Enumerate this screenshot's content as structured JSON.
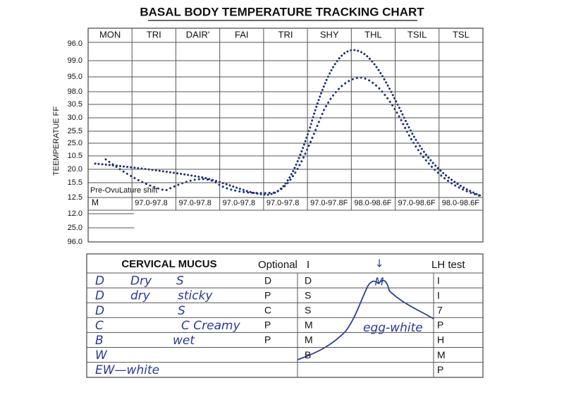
{
  "title": "BASAL BODY TEMPERATURE TRACKING CHART",
  "chart": {
    "days": [
      "MON",
      "TRI",
      "DAIR'",
      "FAI",
      "TRI",
      "SHY",
      "THL",
      "TSIL",
      "TSL"
    ],
    "y_axis_title": "TEEMPERATUE FF",
    "y_labels": [
      "96.0",
      "99.0",
      "95.0",
      "98.0",
      "30.5",
      "30.0",
      "25.5",
      "25.0",
      "10.5",
      "20.0",
      "15.5",
      "12.5",
      "12.0",
      "25.0",
      "96.0"
    ],
    "first_row_label": "M",
    "ranges": [
      "97.0-97.8",
      "97.0-97.8",
      "97.0-97.8",
      "97.0-97.8",
      "97.0-97.8F",
      "98.0-98.6F",
      "97.0-98.6F",
      "98.0-98.6F"
    ],
    "annotation": "Pre-OvuLature shift"
  },
  "mucus_table": {
    "title": "CERVICAL MUCUS",
    "optional_header": "Optional",
    "mid_header": "I",
    "arrow": "↓",
    "lh_header": "LH test",
    "peak_label": "M",
    "egg_white": "egg-white",
    "rows": [
      {
        "code": "D",
        "feel": "Dry",
        "look": "S",
        "optional": "D",
        "mid": "D",
        "lh": "I"
      },
      {
        "code": "D",
        "feel": "dry",
        "look": "sticky",
        "optional": "P",
        "mid": "S",
        "lh": "I"
      },
      {
        "code": "D",
        "look": "S",
        "optional": "C",
        "mid": "S",
        "lh": "7"
      },
      {
        "code": "C",
        "look": "C Creamy",
        "optional": "P",
        "mid": "M",
        "lh": "P"
      },
      {
        "code": "B",
        "feel": "wet",
        "optional": "P",
        "mid": "M",
        "lh": "H"
      },
      {
        "code": "W",
        "mid": "B",
        "lh": "M"
      },
      {
        "code": "EW—white",
        "lh": "P"
      }
    ]
  }
}
